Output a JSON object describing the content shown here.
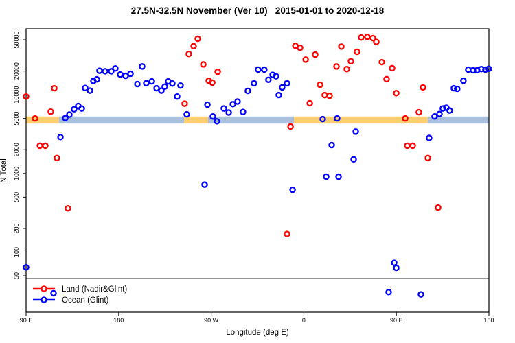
{
  "title": "27.5N-32.5N November (Ver 10)   2015-01-01 to 2020-12-18",
  "chart_data": {
    "type": "scatter",
    "title": "27.5N-32.5N November (Ver 10)   2015-01-01 to 2020-12-18",
    "xlabel": "Longitude (deg E)",
    "ylabel": "N Total",
    "x_axis": {
      "note": "longitude axis spans 450 deg, wrapping 90E->180->90W->0->90E->180",
      "domain": [
        90,
        540
      ],
      "ticks": [
        {
          "value": 90,
          "label": "90 E"
        },
        {
          "value": 180,
          "label": "180"
        },
        {
          "value": 270,
          "label": "90 W"
        },
        {
          "value": 360,
          "label": "0"
        },
        {
          "value": 450,
          "label": "90 E"
        },
        {
          "value": 540,
          "label": "180"
        }
      ]
    },
    "y_axis": {
      "scale": "log10",
      "top_value": 50000,
      "ticks": [
        {
          "value": 50,
          "label": "50"
        },
        {
          "value": 100,
          "label": "100"
        },
        {
          "value": 200,
          "label": "200"
        },
        {
          "value": 500,
          "label": "500"
        },
        {
          "value": 1000,
          "label": "1000"
        },
        {
          "value": 2000,
          "label": "2000"
        },
        {
          "value": 5000,
          "label": "5000"
        },
        {
          "value": 10000,
          "label": "10000"
        },
        {
          "value": 20000,
          "label": "20000"
        },
        {
          "value": 50000,
          "label": "50000"
        }
      ]
    },
    "reference_line": {
      "value": 50,
      "color": "#555555"
    },
    "band": {
      "n_range": [
        4300,
        5300
      ],
      "land_color": "#F9CF6F",
      "ocean_color": "#A9BFDB",
      "segments": [
        {
          "from": 90,
          "to": 122,
          "type": "land"
        },
        {
          "from": 122,
          "to": 243.6,
          "type": "ocean"
        },
        {
          "from": 243.6,
          "to": 266.9,
          "type": "land"
        },
        {
          "from": 266.9,
          "to": 350.4,
          "type": "ocean"
        },
        {
          "from": 350.4,
          "to": 480.6,
          "type": "land"
        },
        {
          "from": 480.6,
          "to": 540,
          "type": "ocean"
        }
      ]
    },
    "legend": {
      "position": "bottom-left"
    },
    "series": [
      {
        "name": "Land (Nadir&Glint)",
        "color": "#FF0000",
        "points": [
          [
            90.0,
            9500
          ],
          [
            98.7,
            5000
          ],
          [
            103.4,
            2250
          ],
          [
            108.7,
            2250
          ],
          [
            114.0,
            6100
          ],
          [
            117.4,
            12100
          ],
          [
            120.0,
            1570
          ],
          [
            130.7,
            360
          ],
          [
            244.2,
            7700
          ],
          [
            248.2,
            33000
          ],
          [
            252.9,
            41500
          ],
          [
            256.9,
            51500
          ],
          [
            262.3,
            24300
          ],
          [
            267.6,
            15100
          ],
          [
            271.0,
            14300
          ],
          [
            276.3,
            19600
          ],
          [
            343.7,
            170
          ],
          [
            347.1,
            3950
          ],
          [
            351.8,
            42000
          ],
          [
            356.4,
            39500
          ],
          [
            361.8,
            28000
          ],
          [
            365.8,
            7800
          ],
          [
            371.1,
            32400
          ],
          [
            375.8,
            13400
          ],
          [
            380.4,
            9900
          ],
          [
            385.1,
            9700
          ],
          [
            391.8,
            22900
          ],
          [
            396.5,
            41000
          ],
          [
            401.8,
            21200
          ],
          [
            405.8,
            26700
          ],
          [
            411.8,
            35200
          ],
          [
            415.8,
            53500
          ],
          [
            421.8,
            54500
          ],
          [
            427.2,
            52500
          ],
          [
            430.5,
            47000
          ],
          [
            435.9,
            26000
          ],
          [
            440.5,
            15800
          ],
          [
            445.9,
            21800
          ],
          [
            449.9,
            10500
          ],
          [
            458.6,
            5000
          ],
          [
            460.6,
            2250
          ],
          [
            465.9,
            2250
          ],
          [
            471.9,
            6000
          ],
          [
            475.9,
            12400
          ],
          [
            480.6,
            1570
          ],
          [
            490.6,
            368
          ]
        ]
      },
      {
        "name": "Ocean (Glint)",
        "color": "#0000FF",
        "points": [
          [
            90.0,
            64
          ],
          [
            116.7,
            30
          ],
          [
            123.4,
            2900
          ],
          [
            128.1,
            5050
          ],
          [
            132.1,
            5600
          ],
          [
            136.7,
            6550
          ],
          [
            140.7,
            7200
          ],
          [
            144.1,
            6700
          ],
          [
            147.4,
            12200
          ],
          [
            152.1,
            11300
          ],
          [
            155.4,
            15000
          ],
          [
            158.8,
            15700
          ],
          [
            161.4,
            20200
          ],
          [
            166.8,
            19900
          ],
          [
            172.8,
            19900
          ],
          [
            176.8,
            21600
          ],
          [
            181.5,
            18100
          ],
          [
            186.8,
            17400
          ],
          [
            191.5,
            18500
          ],
          [
            198.2,
            13700
          ],
          [
            202.8,
            22900
          ],
          [
            206.8,
            14000
          ],
          [
            212.2,
            14800
          ],
          [
            216.9,
            12100
          ],
          [
            221.5,
            11300
          ],
          [
            224.9,
            12700
          ],
          [
            228.2,
            14800
          ],
          [
            232.2,
            13900
          ],
          [
            236.9,
            9500
          ],
          [
            240.2,
            13100
          ],
          [
            246.2,
            5650
          ],
          [
            263.6,
            720
          ],
          [
            266.3,
            7500
          ],
          [
            271.6,
            5300
          ],
          [
            275.6,
            4600
          ],
          [
            282.3,
            6700
          ],
          [
            287.0,
            5950
          ],
          [
            291.0,
            7600
          ],
          [
            295.6,
            8200
          ],
          [
            300.9,
            6050
          ],
          [
            305.6,
            11200
          ],
          [
            311.6,
            14000
          ],
          [
            315.6,
            20900
          ],
          [
            321.6,
            20900
          ],
          [
            325.6,
            15500
          ],
          [
            329.7,
            17900
          ],
          [
            333.0,
            17200
          ],
          [
            335.7,
            9900
          ],
          [
            339.0,
            12400
          ],
          [
            343.7,
            14000
          ],
          [
            349.1,
            620
          ],
          [
            378.4,
            4900
          ],
          [
            381.8,
            910
          ],
          [
            387.1,
            2290
          ],
          [
            392.4,
            5000
          ],
          [
            393.8,
            910
          ],
          [
            408.5,
            1510
          ],
          [
            410.5,
            3400
          ],
          [
            442.5,
            31
          ],
          [
            447.9,
            73
          ],
          [
            449.9,
            63
          ],
          [
            473.9,
            29
          ],
          [
            481.9,
            2830
          ],
          [
            487.2,
            5300
          ],
          [
            491.9,
            5700
          ],
          [
            495.2,
            6700
          ],
          [
            498.6,
            6850
          ],
          [
            501.9,
            6300
          ],
          [
            505.9,
            12100
          ],
          [
            509.2,
            11900
          ],
          [
            515.2,
            15100
          ],
          [
            519.9,
            20900
          ],
          [
            524.6,
            20500
          ],
          [
            528.6,
            20500
          ],
          [
            532.6,
            21200
          ],
          [
            536.6,
            20900
          ],
          [
            539.9,
            21400
          ]
        ]
      }
    ]
  }
}
